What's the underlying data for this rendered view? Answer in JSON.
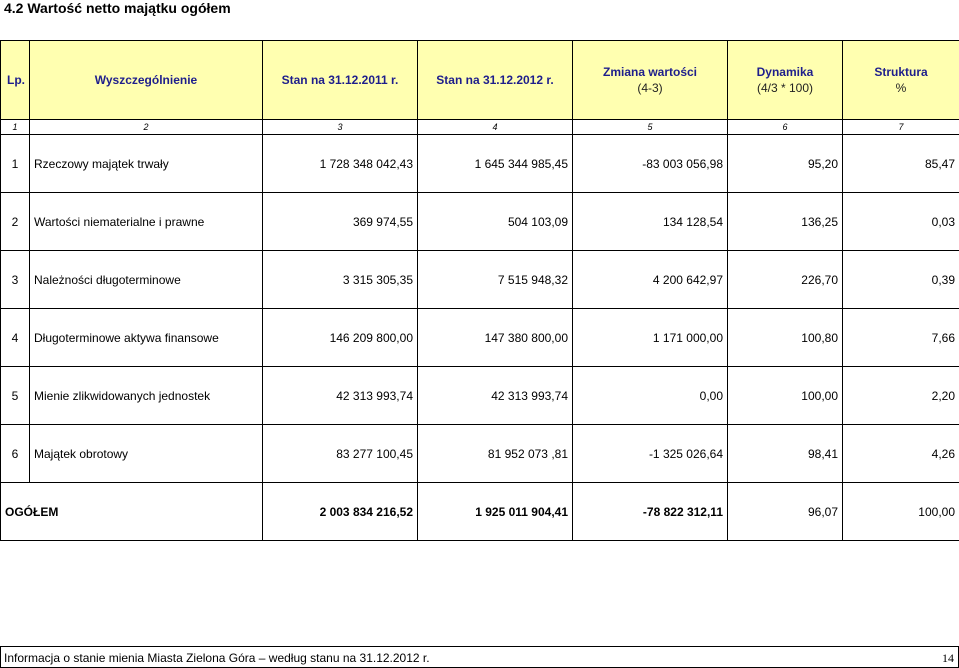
{
  "section_title": "4.2 Wartość netto majątku ogółem",
  "table": {
    "headers": [
      {
        "line1": "Lp.",
        "line2": ""
      },
      {
        "line1": "Wyszczególnienie",
        "line2": ""
      },
      {
        "line1": "Stan na 31.12.2011 r.",
        "line2": ""
      },
      {
        "line1": "Stan na 31.12.2012 r.",
        "line2": ""
      },
      {
        "line1": "Zmiana wartości",
        "line2": "(4-3)"
      },
      {
        "line1": "Dynamika",
        "line2": "(4/3 * 100)"
      },
      {
        "line1": "Struktura",
        "line2": "%"
      }
    ],
    "column_numbers": [
      "1",
      "2",
      "3",
      "4",
      "5",
      "6",
      "7"
    ],
    "rows": [
      {
        "lp": "1",
        "name": "Rzeczowy majątek trwały",
        "s2011": "1 728 348 042,43",
        "s2012": "1 645 344 985,45",
        "change": "-83 003 056,98",
        "dyn": "95,20",
        "str": "85,47"
      },
      {
        "lp": "2",
        "name": "Wartości niematerialne i prawne",
        "s2011": "369 974,55",
        "s2012": "504 103,09",
        "change": "134 128,54",
        "dyn": "136,25",
        "str": "0,03"
      },
      {
        "lp": "3",
        "name": "Należności długoterminowe",
        "s2011": "3 315 305,35",
        "s2012": "7 515 948,32",
        "change": "4 200 642,97",
        "dyn": "226,70",
        "str": "0,39"
      },
      {
        "lp": "4",
        "name": "Długoterminowe aktywa finansowe",
        "s2011": "146 209 800,00",
        "s2012": "147 380 800,00",
        "change": "1 171 000,00",
        "dyn": "100,80",
        "str": "7,66"
      },
      {
        "lp": "5",
        "name": "Mienie zlikwidowanych jednostek",
        "s2011": "42 313 993,74",
        "s2012": "42 313 993,74",
        "change": "0,00",
        "dyn": "100,00",
        "str": "2,20"
      },
      {
        "lp": "6",
        "name": "Majątek obrotowy",
        "s2011": "83 277 100,45",
        "s2012": "81 952 073 ,81",
        "change": "-1 325 026,64",
        "dyn": "98,41",
        "str": "4,26"
      }
    ],
    "total": {
      "label": "OGÓŁEM",
      "s2011": "2 003 834 216,52",
      "s2012": "1 925 011 904,41",
      "change": "-78 822 312,11",
      "dyn": "96,07",
      "str": "100,00"
    }
  },
  "footer": {
    "text": "Informacja o stanie mienia Miasta Zielona Góra – według stanu na 31.12.2012 r.",
    "page": "14"
  }
}
